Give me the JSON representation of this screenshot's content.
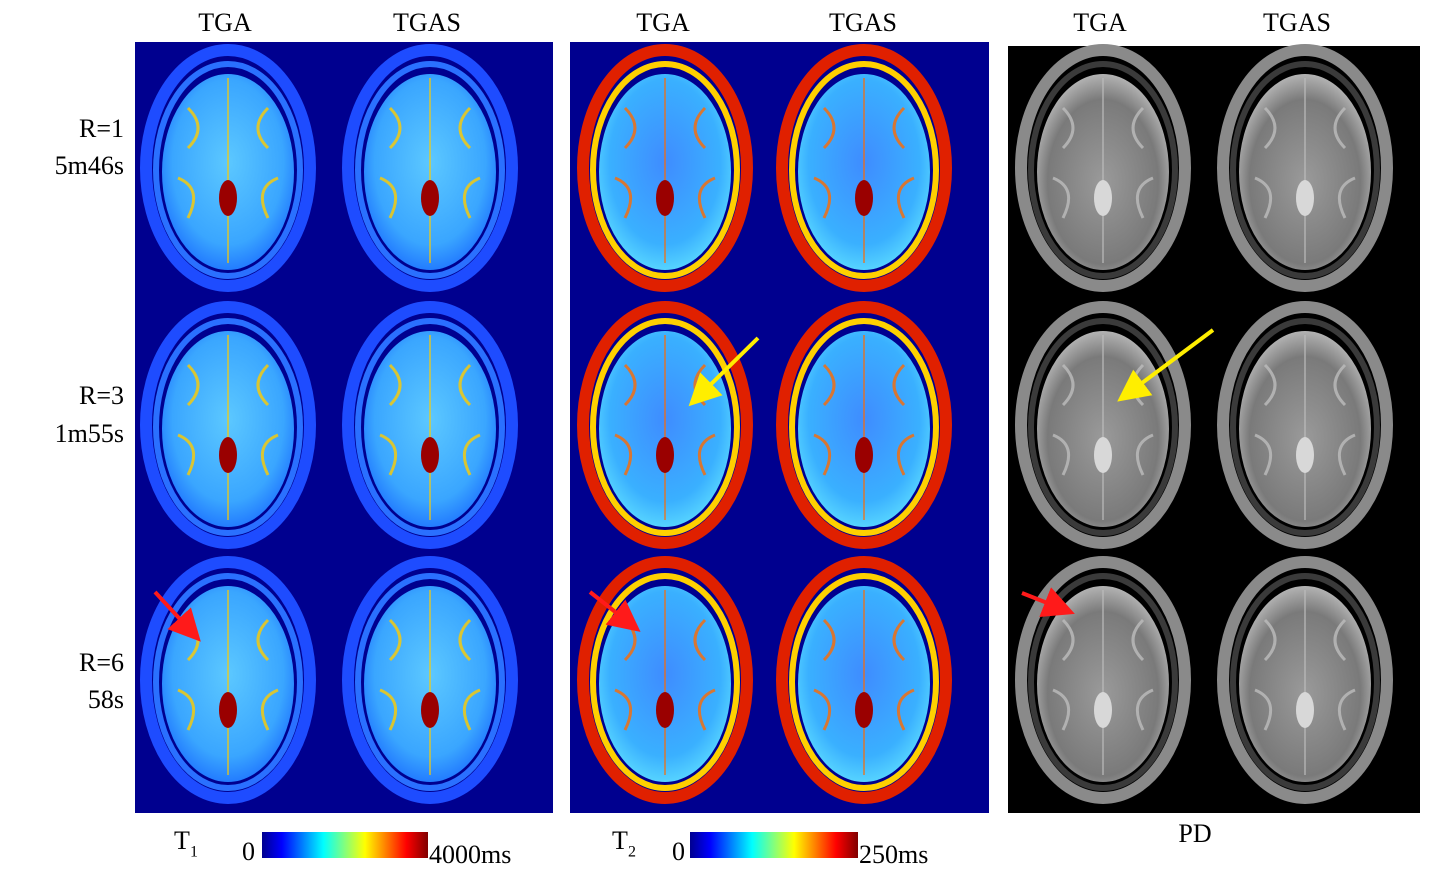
{
  "panels": [
    {
      "columns": [
        "TGA",
        "TGAS"
      ],
      "colorbar": {
        "symbol": "T",
        "subscript": "1",
        "min": "0",
        "max": "4000ms"
      }
    },
    {
      "columns": [
        "TGA",
        "TGAS"
      ],
      "colorbar": {
        "symbol": "T",
        "subscript": "2",
        "min": "0",
        "max": "250ms"
      }
    },
    {
      "columns": [
        "TGA",
        "TGAS"
      ],
      "label": "PD"
    }
  ],
  "rows": [
    {
      "label": "R=1",
      "time": "5m46s"
    },
    {
      "label": "R=3",
      "time": "1m55s"
    },
    {
      "label": "R=6",
      "time": "58s"
    }
  ]
}
